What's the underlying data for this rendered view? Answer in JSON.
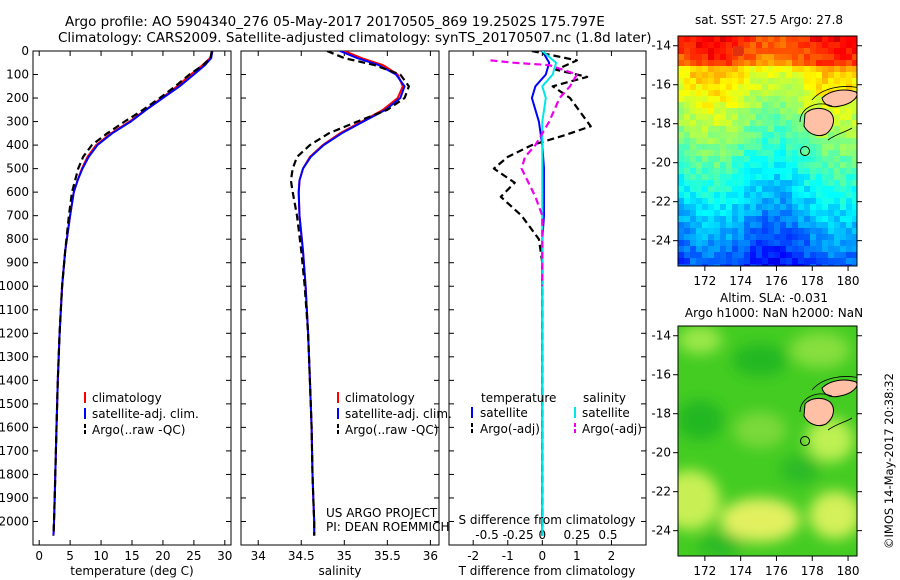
{
  "figure": {
    "title_line1": "Argo profile: AO 5904340_276 05-May-2017 20170505_869 19.2502S 175.797E",
    "title_line2": "Climatology: CARS2009. Satellite-adjusted climatology: synTS_20170507.nc (1.8d later)",
    "credit": "US ARGO PROJECT",
    "pi": "PI: DEAN ROEMMICH",
    "side_stamp": "©IMOS 14-May-2017 20:38:32"
  },
  "colors": {
    "climatology": "#ff0000",
    "satellite": "#0000ff",
    "argo": "#000000",
    "sal_satellite": "#00e6e6",
    "sal_argo": "#ee00ee"
  },
  "chart_data": [
    {
      "id": "temperature",
      "type": "line",
      "xlabel": "temperature (deg C)",
      "ylabel": "",
      "xlim": [
        -1,
        31
      ],
      "ylim": [
        2100,
        0
      ],
      "xticks": [
        0,
        5,
        10,
        15,
        20,
        25,
        30
      ],
      "yticks": [
        0,
        100,
        200,
        300,
        400,
        500,
        600,
        700,
        800,
        900,
        1000,
        1100,
        1200,
        1300,
        1400,
        1500,
        1600,
        1700,
        1800,
        1900,
        2000
      ],
      "legend": {
        "position": "lower-center",
        "labels": [
          "climatology",
          "satellite-adj. clim.",
          "Argo(..raw -QC)"
        ]
      },
      "series": [
        {
          "name": "climatology",
          "style": "solid",
          "x": [
            28.0,
            27.6,
            26.4,
            24.5,
            22.3,
            19.8,
            17.2,
            14.6,
            11.6,
            9.2,
            7.8,
            6.9,
            6.2,
            5.6,
            5.0,
            4.2,
            3.7,
            3.3,
            3.0,
            2.8,
            2.6,
            2.5,
            2.4,
            2.35,
            2.3
          ],
          "y": [
            0,
            30,
            60,
            100,
            150,
            200,
            250,
            300,
            350,
            400,
            450,
            500,
            550,
            600,
            700,
            850,
            1000,
            1200,
            1400,
            1600,
            1800,
            1900,
            2000,
            2040,
            2060
          ]
        },
        {
          "name": "satellite-adj. clim.",
          "style": "solid",
          "x": [
            28.0,
            27.8,
            26.8,
            25.0,
            22.7,
            20.0,
            17.3,
            14.8,
            11.8,
            9.4,
            8.0,
            7.0,
            6.2,
            5.6,
            5.0,
            4.2,
            3.7,
            3.3,
            3.0,
            2.8,
            2.6,
            2.5,
            2.4,
            2.35,
            2.3
          ],
          "y": [
            0,
            30,
            60,
            100,
            150,
            200,
            250,
            300,
            350,
            400,
            450,
            500,
            550,
            600,
            700,
            850,
            1000,
            1200,
            1400,
            1600,
            1800,
            1900,
            2000,
            2040,
            2060
          ]
        },
        {
          "name": "Argo(..raw -QC)",
          "style": "dashed",
          "x": [
            27.9,
            27.7,
            26.5,
            24.3,
            22.0,
            19.5,
            16.8,
            13.8,
            11.0,
            8.5,
            7.1,
            6.3,
            5.8,
            5.3,
            4.8,
            4.2,
            3.7,
            3.3,
            3.0,
            2.8,
            2.6,
            2.5,
            2.4,
            2.35,
            2.3
          ],
          "y": [
            0,
            30,
            60,
            100,
            150,
            200,
            250,
            300,
            350,
            400,
            450,
            500,
            550,
            600,
            700,
            850,
            1000,
            1200,
            1400,
            1600,
            1800,
            1900,
            2000,
            2040,
            2060
          ]
        }
      ]
    },
    {
      "id": "salinity",
      "type": "line",
      "xlabel": "salinity",
      "ylabel": "",
      "xlim": [
        33.8,
        36.1
      ],
      "ylim": [
        2100,
        0
      ],
      "xticks": [
        34,
        34.5,
        35,
        35.5,
        36
      ],
      "legend": {
        "position": "lower-center",
        "labels": [
          "climatology",
          "satellite-adj. clim.",
          "Argo(..raw -QC)"
        ]
      },
      "series": [
        {
          "name": "climatology",
          "style": "solid",
          "x": [
            35.0,
            35.2,
            35.45,
            35.62,
            35.68,
            35.62,
            35.45,
            35.2,
            34.95,
            34.75,
            34.6,
            34.52,
            34.48,
            34.47,
            34.48,
            34.52,
            34.55,
            34.58,
            34.6,
            34.62,
            34.63,
            34.64,
            34.65,
            34.65
          ],
          "y": [
            0,
            30,
            60,
            100,
            150,
            200,
            250,
            300,
            350,
            400,
            450,
            500,
            550,
            600,
            700,
            850,
            1000,
            1200,
            1400,
            1600,
            1800,
            1900,
            2000,
            2060
          ]
        },
        {
          "name": "satellite-adj. clim.",
          "style": "solid",
          "x": [
            34.95,
            35.15,
            35.4,
            35.6,
            35.7,
            35.65,
            35.48,
            35.22,
            34.97,
            34.76,
            34.61,
            34.52,
            34.48,
            34.47,
            34.48,
            34.52,
            34.55,
            34.58,
            34.6,
            34.62,
            34.63,
            34.64,
            34.65,
            34.65
          ],
          "y": [
            0,
            30,
            60,
            100,
            150,
            200,
            250,
            300,
            350,
            400,
            450,
            500,
            550,
            600,
            700,
            850,
            1000,
            1200,
            1400,
            1600,
            1800,
            1900,
            2000,
            2060
          ]
        },
        {
          "name": "Argo(..raw -QC)",
          "style": "dashed",
          "x": [
            34.8,
            35.0,
            35.35,
            35.65,
            35.75,
            35.7,
            35.5,
            35.15,
            34.82,
            34.6,
            34.45,
            34.4,
            34.38,
            34.4,
            34.45,
            34.5,
            34.54,
            34.58,
            34.6,
            34.62,
            34.63,
            34.64,
            34.65,
            34.65
          ],
          "y": [
            0,
            30,
            60,
            100,
            150,
            200,
            250,
            300,
            350,
            400,
            450,
            500,
            550,
            600,
            700,
            850,
            1000,
            1200,
            1400,
            1600,
            1800,
            1900,
            2000,
            2060
          ]
        }
      ]
    },
    {
      "id": "difference",
      "type": "line",
      "xlabel": "T difference from climatology",
      "x2label": "S difference from climatology",
      "xlim": [
        -2.7,
        3.0
      ],
      "ylim": [
        2100,
        0
      ],
      "xticks": [
        -2,
        -1,
        0,
        1,
        2
      ],
      "x2ticks": [
        {
          "label": "-0.5",
          "at_t": -1.6
        },
        {
          "label": "-0.25",
          "at_t": -0.7
        },
        {
          "label": "0",
          "at_t": 0
        },
        {
          "label": "0.25",
          "at_t": 1.0
        },
        {
          "label": "0.5",
          "at_t": 1.9
        }
      ],
      "legend": {
        "position": "lower",
        "temperature_label": "temperature",
        "salinity_label": "salinity",
        "labels": [
          "satellite",
          "Argo(-adj)",
          "satellite",
          "Argo(-adj)"
        ]
      },
      "series": [
        {
          "name": "temperature satellite",
          "style": "solid",
          "x": [
            0.0,
            0.2,
            0.1,
            -0.2,
            -0.3,
            -0.2,
            -0.1,
            0.0,
            0.05,
            0.05,
            0.05,
            0.0,
            0.0,
            0.0,
            0.0,
            0.0
          ],
          "y": [
            0,
            50,
            100,
            150,
            200,
            250,
            300,
            400,
            500,
            600,
            700,
            800,
            900,
            1200,
            1600,
            2060
          ]
        },
        {
          "name": "temperature Argo(-adj)",
          "style": "dashed",
          "x": [
            -0.3,
            1.0,
            0.4,
            1.3,
            0.3,
            0.8,
            1.4,
            0.6,
            -0.3,
            -1.0,
            -1.4,
            -0.8,
            -1.2,
            -0.6,
            -0.1,
            0.0,
            0.0,
            0.0
          ],
          "y": [
            0,
            40,
            80,
            110,
            150,
            200,
            320,
            360,
            400,
            450,
            500,
            560,
            620,
            700,
            800,
            900,
            1200,
            2060
          ]
        },
        {
          "name": "salinity satellite",
          "style": "solid",
          "x": [
            0.0,
            0.4,
            0.3,
            0.0,
            0.1,
            0.0,
            0.0,
            0.0,
            0.0,
            0.0,
            0.0
          ],
          "y": [
            0,
            50,
            100,
            150,
            200,
            300,
            400,
            600,
            900,
            1400,
            2060
          ]
        },
        {
          "name": "salinity Argo(-adj)",
          "style": "dashed",
          "x": [
            -1.5,
            -0.8,
            0.2,
            1.0,
            0.8,
            0.5,
            0.2,
            -0.2,
            -0.5,
            -0.6,
            -0.4,
            -0.2,
            0.0,
            0.0
          ],
          "y": [
            40,
            50,
            60,
            100,
            150,
            200,
            300,
            400,
            450,
            500,
            560,
            620,
            700,
            1000
          ]
        }
      ]
    },
    {
      "id": "sst_map",
      "type": "heatmap",
      "title": "sat. SST: 27.5 Argo: 27.8",
      "xlim": [
        170.5,
        180.5
      ],
      "ylim": [
        -25.3,
        -13.5
      ],
      "xticks": [
        172,
        174,
        176,
        178,
        180
      ],
      "yticks": [
        -14,
        -16,
        -18,
        -20,
        -22,
        -24
      ],
      "argo_position": {
        "lon": 175.797,
        "lat": -19.25
      }
    },
    {
      "id": "sla_map",
      "type": "heatmap",
      "title_line1": "Altim. SLA: -0.031",
      "title_line2": "Argo h1000: NaN h2000: NaN",
      "xlim": [
        170.5,
        180.5
      ],
      "ylim": [
        -25.3,
        -13.5
      ],
      "xticks": [
        172,
        174,
        176,
        178,
        180
      ],
      "yticks": [
        -14,
        -16,
        -18,
        -20,
        -22,
        -24
      ],
      "argo_position": {
        "lon": 175.797,
        "lat": -19.25
      }
    }
  ]
}
